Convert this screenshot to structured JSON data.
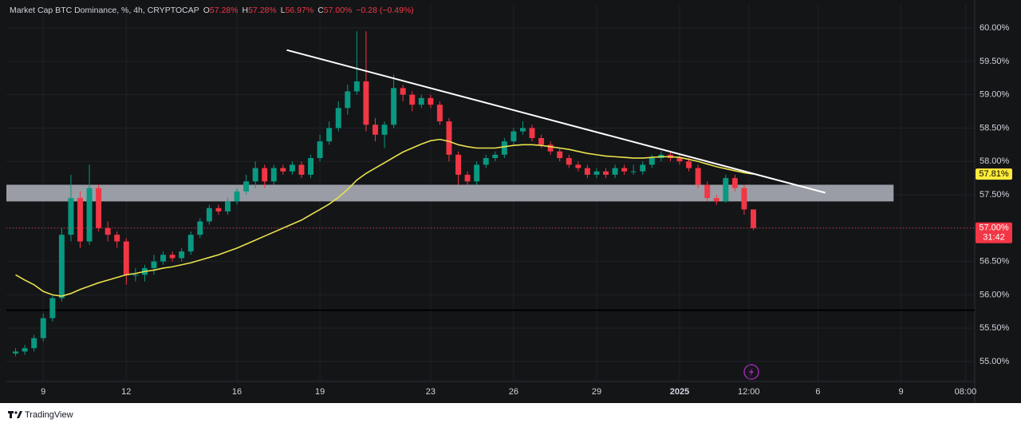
{
  "chart_data": {
    "type": "candlestick",
    "header": {
      "title": "Market Cap BTC Dominance, %, 4h, CRYPTOCAP",
      "ohlc": [
        {
          "key": "O",
          "value": "57.28%"
        },
        {
          "key": "H",
          "value": "57.28%"
        },
        {
          "key": "L",
          "value": "56.97%"
        },
        {
          "key": "C",
          "value": "57.00%"
        }
      ],
      "change": "−0.28 (−0.49%)"
    },
    "up_color": "#089981",
    "down_color": "#f23645",
    "open": [
      55.12,
      55.15,
      55.2,
      55.35,
      55.65,
      55.95,
      56.9,
      57.45,
      56.8,
      57.6,
      57.0,
      56.9,
      56.8,
      56.3,
      56.3,
      56.4,
      56.5,
      56.6,
      56.55,
      56.65,
      56.9,
      57.1,
      57.3,
      57.25,
      57.4,
      57.55,
      57.7,
      57.9,
      57.7,
      57.9,
      57.85,
      57.95,
      57.8,
      58.05,
      58.3,
      58.5,
      58.8,
      59.05,
      59.2,
      58.55,
      58.4,
      58.55,
      59.1,
      59.0,
      58.85,
      58.95,
      58.85,
      58.6,
      58.1,
      57.8,
      57.7,
      57.95,
      58.05,
      58.1,
      58.3,
      58.45,
      58.5,
      58.35,
      58.25,
      58.15,
      58.05,
      57.95,
      57.9,
      57.8,
      57.85,
      57.8,
      57.9,
      57.85,
      57.85,
      57.95,
      58.05,
      58.1,
      58.05,
      58.0,
      57.9,
      57.65,
      57.45,
      57.4,
      57.75,
      57.6,
      57.28
    ],
    "high": [
      55.2,
      55.25,
      55.4,
      55.72,
      56.0,
      57.0,
      57.8,
      57.55,
      57.95,
      57.65,
      57.1,
      56.95,
      56.85,
      56.4,
      56.45,
      56.6,
      56.65,
      56.65,
      56.7,
      56.95,
      57.15,
      57.35,
      57.35,
      57.45,
      57.6,
      57.8,
      58.0,
      57.95,
      57.95,
      57.95,
      58.0,
      58.0,
      58.1,
      58.4,
      58.6,
      58.9,
      59.15,
      59.95,
      59.95,
      58.65,
      58.6,
      59.3,
      59.15,
      59.05,
      59.0,
      59.0,
      58.9,
      58.65,
      58.15,
      57.85,
      58.0,
      58.1,
      58.15,
      58.35,
      58.5,
      58.6,
      58.55,
      58.4,
      58.3,
      58.2,
      58.1,
      58.0,
      57.95,
      57.9,
      57.9,
      57.95,
      57.95,
      57.95,
      58.0,
      58.1,
      58.15,
      58.15,
      58.1,
      58.05,
      57.95,
      57.7,
      57.5,
      57.8,
      57.8,
      57.65,
      57.28
    ],
    "low": [
      55.08,
      55.1,
      55.15,
      55.3,
      55.6,
      55.9,
      56.8,
      56.7,
      56.75,
      56.95,
      56.8,
      56.7,
      56.15,
      56.2,
      56.2,
      56.3,
      56.45,
      56.5,
      56.5,
      56.6,
      56.85,
      57.05,
      57.2,
      57.2,
      57.35,
      57.5,
      57.6,
      57.6,
      57.65,
      57.8,
      57.8,
      57.75,
      57.75,
      58.0,
      58.25,
      58.45,
      58.7,
      59.0,
      58.45,
      58.3,
      58.2,
      58.5,
      58.9,
      58.75,
      58.8,
      58.8,
      58.55,
      58.0,
      57.65,
      57.65,
      57.65,
      57.9,
      58.0,
      58.05,
      58.25,
      58.4,
      58.3,
      58.2,
      58.1,
      58.0,
      57.9,
      57.85,
      57.75,
      57.75,
      57.75,
      57.75,
      57.8,
      57.8,
      57.8,
      57.9,
      58.0,
      58.0,
      57.95,
      57.85,
      57.6,
      57.4,
      57.35,
      57.38,
      57.55,
      57.2,
      56.97
    ],
    "close": [
      55.15,
      55.2,
      55.35,
      55.65,
      55.95,
      56.9,
      57.45,
      56.8,
      57.6,
      57.0,
      56.9,
      56.8,
      56.3,
      56.3,
      56.4,
      56.5,
      56.6,
      56.55,
      56.65,
      56.9,
      57.1,
      57.3,
      57.25,
      57.4,
      57.55,
      57.7,
      57.9,
      57.7,
      57.9,
      57.85,
      57.95,
      57.8,
      58.05,
      58.3,
      58.5,
      58.8,
      59.05,
      59.2,
      58.55,
      58.4,
      58.55,
      59.1,
      59.0,
      58.85,
      58.95,
      58.85,
      58.6,
      58.1,
      57.8,
      57.7,
      57.95,
      58.05,
      58.1,
      58.3,
      58.45,
      58.5,
      58.35,
      58.25,
      58.15,
      58.05,
      57.95,
      57.9,
      57.8,
      57.85,
      57.8,
      57.9,
      57.85,
      57.85,
      57.95,
      58.05,
      58.1,
      58.05,
      58.0,
      57.9,
      57.65,
      57.45,
      57.4,
      57.75,
      57.6,
      57.28,
      57.0
    ],
    "ma": {
      "color": "#e9e24f",
      "values": [
        56.3,
        56.22,
        56.15,
        56.05,
        56.0,
        55.98,
        56.02,
        56.08,
        56.13,
        56.18,
        56.22,
        56.26,
        56.3,
        56.32,
        56.35,
        56.37,
        56.4,
        56.42,
        56.45,
        56.48,
        56.52,
        56.56,
        56.6,
        56.65,
        56.7,
        56.76,
        56.82,
        56.88,
        56.94,
        57.0,
        57.06,
        57.12,
        57.2,
        57.28,
        57.36,
        57.46,
        57.58,
        57.72,
        57.82,
        57.9,
        57.98,
        58.06,
        58.14,
        58.2,
        58.26,
        58.31,
        58.33,
        58.3,
        58.25,
        58.22,
        58.2,
        58.2,
        58.2,
        58.22,
        58.24,
        58.25,
        58.25,
        58.24,
        58.22,
        58.2,
        58.18,
        58.15,
        58.12,
        58.1,
        58.08,
        58.07,
        58.06,
        58.05,
        58.05,
        58.06,
        58.07,
        58.07,
        58.06,
        58.03,
        58.0,
        57.96,
        57.92,
        57.89,
        57.86,
        57.83,
        57.81
      ]
    },
    "xlim": [
      -1,
      104
    ],
    "xticks": [
      {
        "value": 3,
        "label": "9"
      },
      {
        "value": 12,
        "label": "12"
      },
      {
        "value": 24,
        "label": "16"
      },
      {
        "value": 33,
        "label": "19"
      },
      {
        "value": 45,
        "label": "23"
      },
      {
        "value": 54,
        "label": "26"
      },
      {
        "value": 63,
        "label": "29"
      },
      {
        "value": 72,
        "label": "2025",
        "bold": true
      },
      {
        "value": 79.5,
        "label": "12:00"
      },
      {
        "value": 87,
        "label": "6"
      },
      {
        "value": 96,
        "label": "9"
      },
      {
        "value": 103,
        "label": "08:00"
      }
    ],
    "ylim": [
      54.7,
      60.36
    ],
    "yticks": [
      {
        "value": 55,
        "label": "55.00%"
      },
      {
        "value": 55.5,
        "label": "55.50%"
      },
      {
        "value": 56,
        "label": "56.00%"
      },
      {
        "value": 56.5,
        "label": "56.50%"
      },
      {
        "value": 57,
        "label": "57.00%"
      },
      {
        "value": 57.5,
        "label": "57.50%"
      },
      {
        "value": 58,
        "label": "58.00%"
      },
      {
        "value": 58.5,
        "label": "58.50%"
      },
      {
        "value": 59,
        "label": "59.00%"
      },
      {
        "value": 59.5,
        "label": "59.50%"
      },
      {
        "value": 60,
        "label": "60.00%"
      }
    ],
    "grid": true,
    "trendline": {
      "x": [
        29.4,
        87.8
      ],
      "y": [
        59.67,
        57.53
      ],
      "color": "#ffffff"
    },
    "zone": {
      "xlim": [
        -1,
        95.2
      ],
      "ylim": [
        57.4,
        57.65
      ],
      "color": "#b2b5be"
    },
    "support_line": {
      "value": 55.77,
      "color": "#000000"
    },
    "price_labels": [
      {
        "value": 57.81,
        "label": "57.81%",
        "color": "#ffeb3b",
        "text_color": "#000000"
      },
      {
        "value": 57.0,
        "label": "57.00%",
        "color": "#f23645",
        "text_color": "#ffffff",
        "countdown": "31:42"
      }
    ],
    "footer": "TradingView"
  }
}
